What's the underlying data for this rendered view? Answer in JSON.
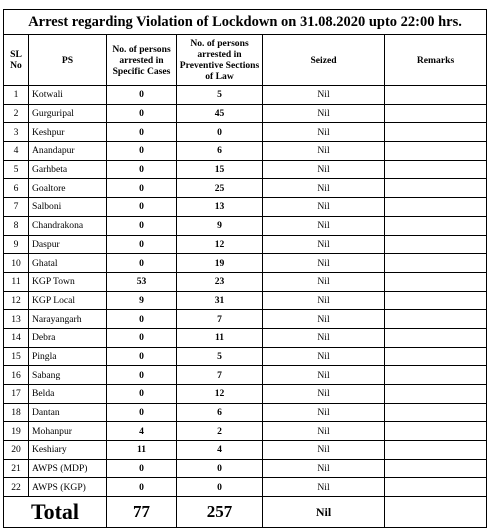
{
  "title": "Arrest regarding Violation of Lockdown on 31.08.2020 upto 22:00 hrs.",
  "headers": {
    "sl": "SL No",
    "ps": "PS",
    "specific": "No. of persons arrested in Specific Cases",
    "preventive": "No. of persons arrested in Preventive Sections of Law",
    "seized": "Seized",
    "remarks": "Remarks"
  },
  "rows": [
    {
      "sl": "1",
      "ps": "Kotwali",
      "specific": "0",
      "preventive": "5",
      "seized": "Nil",
      "remarks": ""
    },
    {
      "sl": "2",
      "ps": "Gurguripal",
      "specific": "0",
      "preventive": "45",
      "seized": "Nil",
      "remarks": ""
    },
    {
      "sl": "3",
      "ps": "Keshpur",
      "specific": "0",
      "preventive": "0",
      "seized": "Nil",
      "remarks": ""
    },
    {
      "sl": "4",
      "ps": "Anandapur",
      "specific": "0",
      "preventive": "6",
      "seized": "Nil",
      "remarks": ""
    },
    {
      "sl": "5",
      "ps": "Garhbeta",
      "specific": "0",
      "preventive": "15",
      "seized": "Nil",
      "remarks": ""
    },
    {
      "sl": "6",
      "ps": "Goaltore",
      "specific": "0",
      "preventive": "25",
      "seized": "Nil",
      "remarks": ""
    },
    {
      "sl": "7",
      "ps": "Salboni",
      "specific": "0",
      "preventive": "13",
      "seized": "Nil",
      "remarks": ""
    },
    {
      "sl": "8",
      "ps": "Chandrakona",
      "specific": "0",
      "preventive": "9",
      "seized": "Nil",
      "remarks": ""
    },
    {
      "sl": "9",
      "ps": "Daspur",
      "specific": "0",
      "preventive": "12",
      "seized": "Nil",
      "remarks": ""
    },
    {
      "sl": "10",
      "ps": "Ghatal",
      "specific": "0",
      "preventive": "19",
      "seized": "Nil",
      "remarks": ""
    },
    {
      "sl": "11",
      "ps": "KGP Town",
      "specific": "53",
      "preventive": "23",
      "seized": "Nil",
      "remarks": ""
    },
    {
      "sl": "12",
      "ps": "KGP Local",
      "specific": "9",
      "preventive": "31",
      "seized": "Nil",
      "remarks": ""
    },
    {
      "sl": "13",
      "ps": "Narayangarh",
      "specific": "0",
      "preventive": "7",
      "seized": "Nil",
      "remarks": ""
    },
    {
      "sl": "14",
      "ps": "Debra",
      "specific": "0",
      "preventive": "11",
      "seized": "Nil",
      "remarks": ""
    },
    {
      "sl": "15",
      "ps": "Pingla",
      "specific": "0",
      "preventive": "5",
      "seized": "Nil",
      "remarks": ""
    },
    {
      "sl": "16",
      "ps": "Sabang",
      "specific": "0",
      "preventive": "7",
      "seized": "Nil",
      "remarks": ""
    },
    {
      "sl": "17",
      "ps": "Belda",
      "specific": "0",
      "preventive": "12",
      "seized": "Nil",
      "remarks": ""
    },
    {
      "sl": "18",
      "ps": "Dantan",
      "specific": "0",
      "preventive": "6",
      "seized": "Nil",
      "remarks": ""
    },
    {
      "sl": "19",
      "ps": "Mohanpur",
      "specific": "4",
      "preventive": "2",
      "seized": "Nil",
      "remarks": ""
    },
    {
      "sl": "20",
      "ps": "Keshiary",
      "specific": "11",
      "preventive": "4",
      "seized": "Nil",
      "remarks": ""
    },
    {
      "sl": "21",
      "ps": "AWPS (MDP)",
      "specific": "0",
      "preventive": "0",
      "seized": "Nil",
      "remarks": ""
    },
    {
      "sl": "22",
      "ps": "AWPS (KGP)",
      "specific": "0",
      "preventive": "0",
      "seized": "Nil",
      "remarks": ""
    }
  ],
  "total": {
    "label": "Total",
    "specific": "77",
    "preventive": "257",
    "seized": "Nil",
    "remarks": ""
  }
}
